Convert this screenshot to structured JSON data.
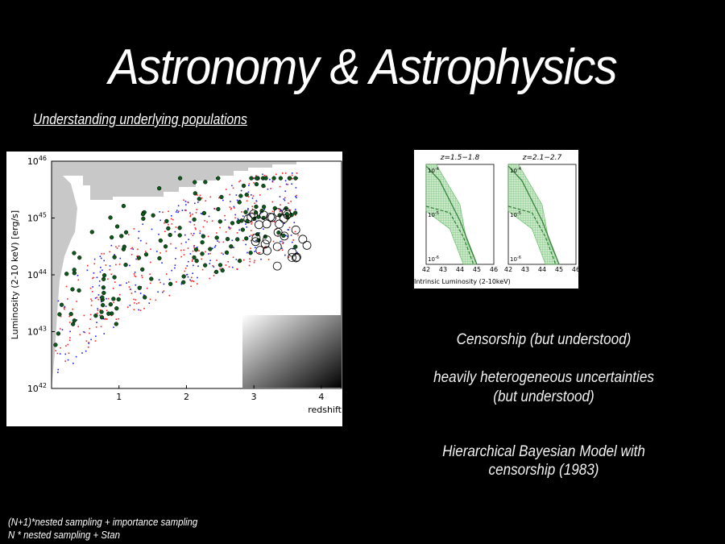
{
  "slide": {
    "title": "Astronomy & Astrophysics",
    "subtitle": "Understanding underlying populations",
    "notes": [
      "Censorship (but understood)",
      "heavily heterogeneous uncertainties",
      "(but understood)",
      "Hierarchical Bayesian Model with",
      "censorship (1983)"
    ],
    "footer": [
      "(N+1)*nested sampling + importance sampling",
      "N * nested sampling + Stan"
    ]
  },
  "chart_data": [
    {
      "type": "scatter",
      "xlabel": "redshift",
      "ylabel": "Luminosity (2-10 keV) [erg/s]",
      "xlim": [
        0,
        4.3
      ],
      "ylim": [
        42,
        46
      ],
      "x_ticks": [
        "1",
        "2",
        "3",
        "4"
      ],
      "y_ticks": [
        "10^42",
        "10^43",
        "10^44",
        "10^45",
        "10^46"
      ],
      "series_colors": [
        "#ff2020",
        "#1a1aff",
        "#0b5a1a"
      ],
      "note": "log10 luminosity vs redshift for X-ray sources; circled points are highlighted sources"
    },
    {
      "type": "area",
      "panels": [
        {
          "title": "z=1.5−1.8"
        },
        {
          "title": "z=2.1−2.7"
        }
      ],
      "xlabel": "Intrinsic Luminosity (2-10keV)",
      "x_ticks": [
        "42",
        "43",
        "44",
        "45",
        "46"
      ],
      "y_ticks": [
        "10^-4",
        "10^-5",
        "10^-6"
      ],
      "color": "#5cb85c"
    }
  ]
}
